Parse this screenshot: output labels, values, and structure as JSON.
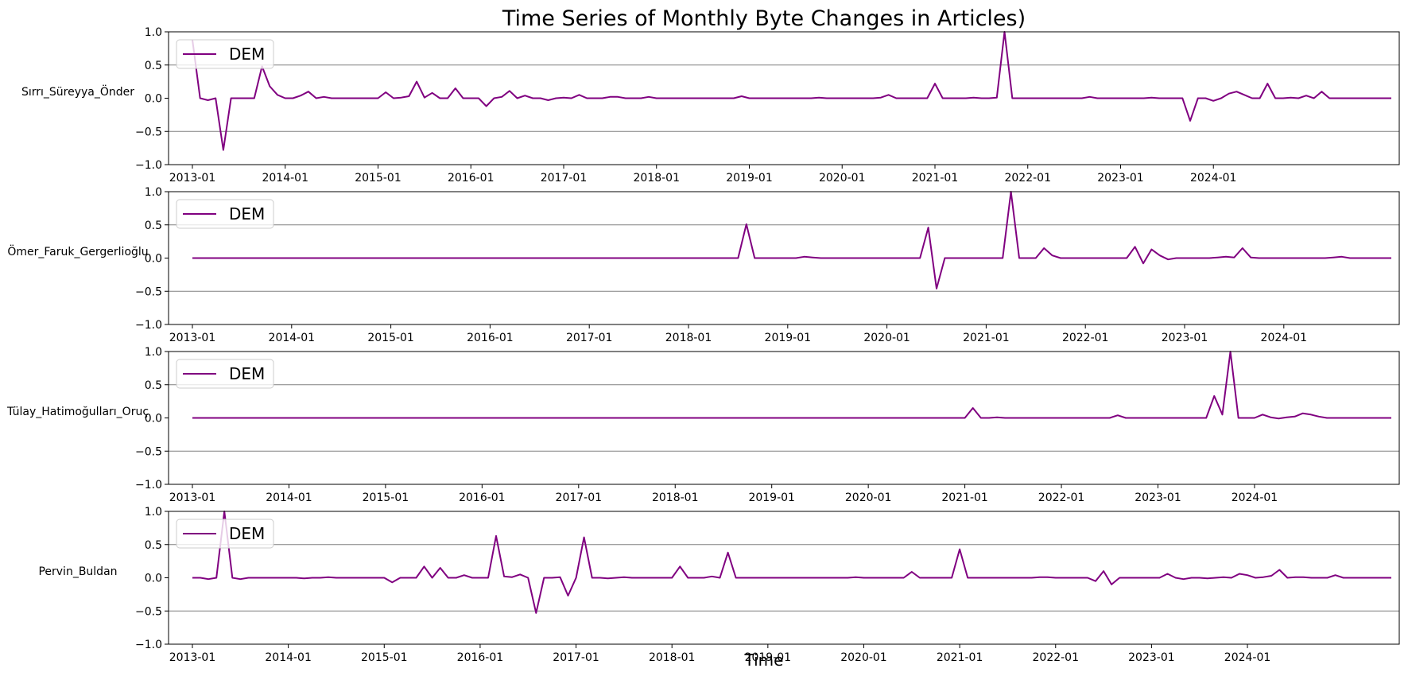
{
  "figure": {
    "title": "Time Series of Monthly Byte Changes in Articles)",
    "xlabel": "Time"
  },
  "colors": {
    "line": "#800080",
    "grid": "#808080",
    "axes": "#000000",
    "legend_border": "#cccccc"
  },
  "chart_data": [
    {
      "type": "line",
      "ylabel": "Sırrı_Süreyya_Önder",
      "legend_label": "DEM",
      "legend_position": "upper-left",
      "x_start": "2013-01",
      "x_end": "2024-12",
      "x_ticks": [
        "2013-01",
        "2014-01",
        "2015-01",
        "2016-01",
        "2017-01",
        "2018-01",
        "2019-01",
        "2020-01",
        "2021-01",
        "2022-01",
        "2023-01",
        "2024-01"
      ],
      "ylim": [
        -1.0,
        1.0
      ],
      "y_ticks": [
        "1.0",
        "0.5",
        "0.0",
        "−0.5",
        "−1.0"
      ],
      "y_grid": [
        -0.5,
        0.5
      ],
      "values": [
        0.88,
        0.0,
        -0.03,
        0.0,
        -0.78,
        0.0,
        0.0,
        0.0,
        0.0,
        0.48,
        0.18,
        0.05,
        0.0,
        0.0,
        0.04,
        0.1,
        0.0,
        0.02,
        0.0,
        0.0,
        0.0,
        0.0,
        0.0,
        0.0,
        0.0,
        0.09,
        0.0,
        0.01,
        0.03,
        0.25,
        0.01,
        0.08,
        0.0,
        0.0,
        0.15,
        0.0,
        0.0,
        0.0,
        -0.12,
        0.0,
        0.02,
        0.11,
        0.0,
        0.04,
        0.0,
        0.0,
        -0.03,
        0.0,
        0.01,
        0.0,
        0.05,
        0.0,
        0.0,
        0.0,
        0.02,
        0.02,
        0.0,
        0.0,
        0.0,
        0.02,
        0.0,
        0.0,
        0.0,
        0.0,
        0.0,
        0.0,
        0.0,
        0.0,
        0.0,
        0.0,
        0.0,
        0.03,
        0.0,
        0.0,
        0.0,
        0.0,
        0.0,
        0.0,
        0.0,
        0.0,
        0.0,
        0.01,
        0.0,
        0.0,
        0.0,
        0.0,
        0.0,
        0.0,
        0.0,
        0.01,
        0.05,
        0.0,
        0.0,
        0.0,
        0.0,
        0.0,
        0.22,
        0.0,
        0.0,
        0.0,
        0.0,
        0.01,
        0.0,
        0.0,
        0.01,
        1.0,
        0.0,
        0.0,
        0.0,
        0.0,
        0.0,
        0.0,
        0.0,
        0.0,
        0.0,
        0.0,
        0.02,
        0.0,
        0.0,
        0.0,
        0.0,
        0.0,
        0.0,
        0.0,
        0.01,
        0.0,
        0.0,
        0.0,
        0.0,
        -0.34,
        0.0,
        0.0,
        -0.04,
        0.0,
        0.07,
        0.1,
        0.05,
        0.0,
        0.0,
        0.22,
        0.0,
        0.0,
        0.01,
        0.0,
        0.04,
        0.0,
        0.1,
        0.0,
        0.0,
        0.0,
        0.0,
        0.0,
        0.0,
        0.0,
        0.0,
        0.0
      ]
    },
    {
      "type": "line",
      "ylabel": "Ömer_Faruk_Gergerlioğlu",
      "legend_label": "DEM",
      "legend_position": "upper-left",
      "x_start": "2013-01",
      "x_end": "2024-12",
      "x_ticks": [
        "2013-01",
        "2014-01",
        "2015-01",
        "2016-01",
        "2017-01",
        "2018-01",
        "2019-01",
        "2020-01",
        "2021-01",
        "2022-01",
        "2023-01",
        "2024-01"
      ],
      "ylim": [
        -1.0,
        1.0
      ],
      "y_ticks": [
        "1.0",
        "0.5",
        "0.0",
        "−0.5",
        "−1.0"
      ],
      "y_grid": [
        -0.5,
        0.5
      ],
      "values": [
        0.0,
        0.0,
        0.0,
        0.0,
        0.0,
        0.0,
        0.0,
        0.0,
        0.0,
        0.0,
        0.0,
        0.0,
        0.0,
        0.0,
        0.0,
        0.0,
        0.0,
        0.0,
        0.0,
        0.0,
        0.0,
        0.0,
        0.0,
        0.0,
        0.0,
        0.0,
        0.0,
        0.0,
        0.0,
        0.0,
        0.0,
        0.0,
        0.0,
        0.0,
        0.0,
        0.0,
        0.0,
        0.0,
        0.0,
        0.0,
        0.0,
        0.0,
        0.0,
        0.0,
        0.0,
        0.0,
        0.0,
        0.0,
        0.0,
        0.0,
        0.0,
        0.0,
        0.0,
        0.0,
        0.0,
        0.0,
        0.0,
        0.0,
        0.0,
        0.0,
        0.0,
        0.0,
        0.0,
        0.0,
        0.0,
        0.0,
        0.0,
        0.51,
        0.0,
        0.0,
        0.0,
        0.0,
        0.0,
        0.0,
        0.02,
        0.01,
        0.0,
        0.0,
        0.0,
        0.0,
        0.0,
        0.0,
        0.0,
        0.0,
        0.0,
        0.0,
        0.0,
        0.0,
        0.0,
        0.46,
        -0.46,
        0.0,
        0.0,
        0.0,
        0.0,
        0.0,
        0.0,
        0.0,
        0.0,
        1.0,
        0.0,
        0.0,
        0.0,
        0.15,
        0.04,
        0.0,
        0.0,
        0.0,
        0.0,
        0.0,
        0.0,
        0.0,
        0.0,
        0.0,
        0.17,
        -0.08,
        0.13,
        0.04,
        -0.02,
        0.0,
        0.0,
        0.0,
        0.0,
        0.0,
        0.01,
        0.02,
        0.01,
        0.15,
        0.01,
        0.0,
        0.0,
        0.0,
        0.0,
        0.0,
        0.0,
        0.0,
        0.0,
        0.0,
        0.01,
        0.02,
        0.0,
        0.0,
        0.0,
        0.0,
        0.0,
        0.0
      ]
    },
    {
      "type": "line",
      "ylabel": "Tülay_Hatimoğulları_Oruç",
      "legend_label": "DEM",
      "legend_position": "upper-left",
      "x_start": "2013-01",
      "x_end": "2024-12",
      "x_ticks": [
        "2013-01",
        "2014-01",
        "2015-01",
        "2016-01",
        "2017-01",
        "2018-01",
        "2019-01",
        "2020-01",
        "2021-01",
        "2022-01",
        "2023-01",
        "2024-01"
      ],
      "ylim": [
        -1.0,
        1.0
      ],
      "y_ticks": [
        "1.0",
        "0.5",
        "0.0",
        "−0.5",
        "−1.0"
      ],
      "y_grid": [
        -0.5,
        0.5
      ],
      "values": [
        0.0,
        0.0,
        0.0,
        0.0,
        0.0,
        0.0,
        0.0,
        0.0,
        0.0,
        0.0,
        0.0,
        0.0,
        0.0,
        0.0,
        0.0,
        0.0,
        0.0,
        0.0,
        0.0,
        0.0,
        0.0,
        0.0,
        0.0,
        0.0,
        0.0,
        0.0,
        0.0,
        0.0,
        0.0,
        0.0,
        0.0,
        0.0,
        0.0,
        0.0,
        0.0,
        0.0,
        0.0,
        0.0,
        0.0,
        0.0,
        0.0,
        0.0,
        0.0,
        0.0,
        0.0,
        0.0,
        0.0,
        0.0,
        0.0,
        0.0,
        0.0,
        0.0,
        0.0,
        0.0,
        0.0,
        0.0,
        0.0,
        0.0,
        0.0,
        0.0,
        0.0,
        0.0,
        0.0,
        0.0,
        0.0,
        0.0,
        0.0,
        0.0,
        0.0,
        0.0,
        0.0,
        0.0,
        0.0,
        0.0,
        0.0,
        0.0,
        0.0,
        0.0,
        0.0,
        0.0,
        0.0,
        0.0,
        0.0,
        0.0,
        0.0,
        0.0,
        0.0,
        0.0,
        0.0,
        0.0,
        0.0,
        0.0,
        0.0,
        0.0,
        0.0,
        0.0,
        0.0,
        0.15,
        0.0,
        0.0,
        0.01,
        0.0,
        0.0,
        0.0,
        0.0,
        0.0,
        0.0,
        0.0,
        0.0,
        0.0,
        0.0,
        0.0,
        0.0,
        0.0,
        0.0,
        0.04,
        0.0,
        0.0,
        0.0,
        0.0,
        0.0,
        0.0,
        0.0,
        0.0,
        0.0,
        0.0,
        0.0,
        0.33,
        0.05,
        1.0,
        0.0,
        0.0,
        0.0,
        0.05,
        0.01,
        -0.01,
        0.01,
        0.02,
        0.07,
        0.05,
        0.02,
        0.0,
        0.0,
        0.0,
        0.0,
        0.0,
        0.0,
        0.0,
        0.0,
        0.0
      ]
    },
    {
      "type": "line",
      "ylabel": "Pervin_Buldan",
      "legend_label": "DEM",
      "legend_position": "upper-left",
      "x_start": "2013-01",
      "x_end": "2024-12",
      "x_ticks": [
        "2013-01",
        "2014-01",
        "2015-01",
        "2016-01",
        "2017-01",
        "2018-01",
        "2019-01",
        "2020-01",
        "2021-01",
        "2022-01",
        "2023-01",
        "2024-01"
      ],
      "ylim": [
        -1.0,
        1.0
      ],
      "y_ticks": [
        "1.0",
        "0.5",
        "0.0",
        "−0.5",
        "−1.0"
      ],
      "y_grid": [
        -0.5,
        0.5
      ],
      "values": [
        0.0,
        0.0,
        -0.02,
        0.0,
        1.0,
        0.0,
        -0.02,
        0.0,
        0.0,
        0.0,
        0.0,
        0.0,
        0.0,
        0.0,
        -0.01,
        0.0,
        0.0,
        0.01,
        0.0,
        0.0,
        0.0,
        0.0,
        0.0,
        0.0,
        0.0,
        -0.07,
        0.0,
        0.0,
        0.0,
        0.17,
        0.0,
        0.15,
        0.0,
        0.0,
        0.04,
        0.0,
        0.0,
        0.0,
        0.63,
        0.02,
        0.01,
        0.05,
        0.0,
        -0.53,
        0.0,
        0.0,
        0.01,
        -0.27,
        0.0,
        0.61,
        0.0,
        0.0,
        -0.01,
        0.0,
        0.01,
        0.0,
        0.0,
        0.0,
        0.0,
        0.0,
        0.0,
        0.17,
        0.0,
        0.0,
        0.0,
        0.02,
        0.0,
        0.38,
        0.0,
        0.0,
        0.0,
        0.0,
        0.0,
        0.0,
        0.0,
        0.0,
        0.0,
        0.0,
        0.0,
        0.0,
        0.0,
        0.0,
        0.0,
        0.01,
        0.0,
        0.0,
        0.0,
        0.0,
        0.0,
        0.0,
        0.09,
        0.0,
        0.0,
        0.0,
        0.0,
        0.0,
        0.43,
        0.0,
        0.0,
        0.0,
        0.0,
        0.0,
        0.0,
        0.0,
        0.0,
        0.0,
        0.01,
        0.01,
        0.0,
        0.0,
        0.0,
        0.0,
        0.0,
        -0.05,
        0.1,
        -0.1,
        0.0,
        0.0,
        0.0,
        0.0,
        0.0,
        0.0,
        0.06,
        0.0,
        -0.02,
        0.0,
        0.0,
        -0.01,
        0.0,
        0.01,
        0.0,
        0.06,
        0.04,
        0.0,
        0.01,
        0.03,
        0.12,
        0.0,
        0.01,
        0.01,
        0.0,
        0.0,
        0.0,
        0.04,
        0.0,
        0.0,
        0.0,
        0.0,
        0.0,
        0.0,
        0.0
      ]
    }
  ]
}
